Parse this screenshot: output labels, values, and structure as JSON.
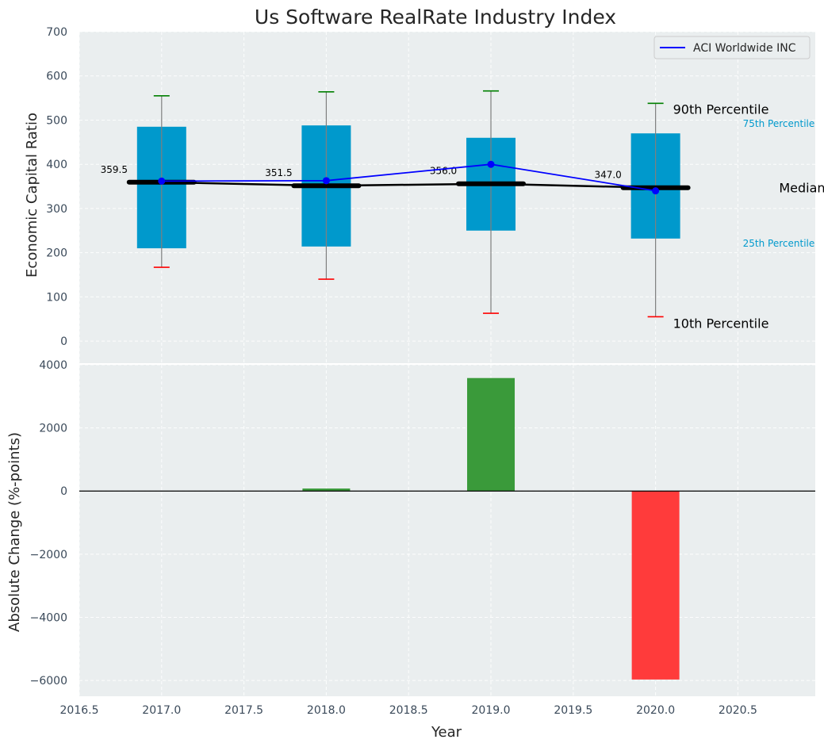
{
  "chart_data": [
    {
      "type": "box",
      "title": "Us Software RealRate Industry Index",
      "ylabel": "Economic Capital Ratio",
      "xlim": [
        2016.5,
        2020.97
      ],
      "ylim": [
        -50,
        700
      ],
      "yticks": [
        0,
        100,
        200,
        300,
        400,
        500,
        600,
        700
      ],
      "grid": true,
      "legend": {
        "placement": "top-right",
        "entries": [
          "ACI Worldwide INC"
        ]
      },
      "boxes": [
        {
          "x": 2017,
          "p10": 167,
          "p25": 210,
          "median": 359.5,
          "p75": 485,
          "p90": 555,
          "median_label": "359.5"
        },
        {
          "x": 2018,
          "p10": 140,
          "p25": 214,
          "median": 351.5,
          "p75": 488,
          "p90": 564,
          "median_label": "351.5"
        },
        {
          "x": 2019,
          "p10": 63,
          "p25": 250,
          "median": 356.0,
          "p75": 460,
          "p90": 566,
          "median_label": "356.0"
        },
        {
          "x": 2020,
          "p10": 55,
          "p25": 232,
          "median": 347.0,
          "p75": 470,
          "p90": 538,
          "median_label": "347.0"
        }
      ],
      "series": [
        {
          "name": "ACI Worldwide INC",
          "x": [
            2017,
            2018,
            2019,
            2020
          ],
          "values": [
            362,
            363,
            400,
            340
          ],
          "color": "#0000ff"
        }
      ],
      "annotations": {
        "p90": "90th Percentile",
        "p75": "75th Percentile",
        "median": "Median",
        "p25": "25th Percentile",
        "p10": "10th Percentile"
      },
      "colors": {
        "box": "#0099cc",
        "upper_whisker": "#008000",
        "lower_whisker": "#ff0000",
        "median_line": "#000000",
        "background": "#eaeeef"
      }
    },
    {
      "type": "bar",
      "xlabel": "Year",
      "ylabel": "Absolute Change (%-points)",
      "xlim": [
        2016.5,
        2020.97
      ],
      "ylim": [
        -6500,
        4000
      ],
      "yticks": [
        -6000,
        -4000,
        -2000,
        0,
        2000,
        4000
      ],
      "ytick_labels": [
        "−6000",
        "−4000",
        "−2000",
        "0",
        "2000",
        "4000"
      ],
      "xticks": [
        2016.5,
        2017.0,
        2017.5,
        2018.0,
        2018.5,
        2019.0,
        2019.5,
        2020.0,
        2020.5
      ],
      "xtick_labels": [
        "2016.5",
        "2017.0",
        "2017.5",
        "2018.0",
        "2018.5",
        "2019.0",
        "2019.5",
        "2020.0",
        "2020.5"
      ],
      "x": [
        2018,
        2019,
        2020
      ],
      "values": [
        80,
        3580,
        -5970
      ],
      "colors": {
        "positive": "#3a9a3a",
        "negative": "#ff3b3b"
      },
      "grid": true
    }
  ]
}
